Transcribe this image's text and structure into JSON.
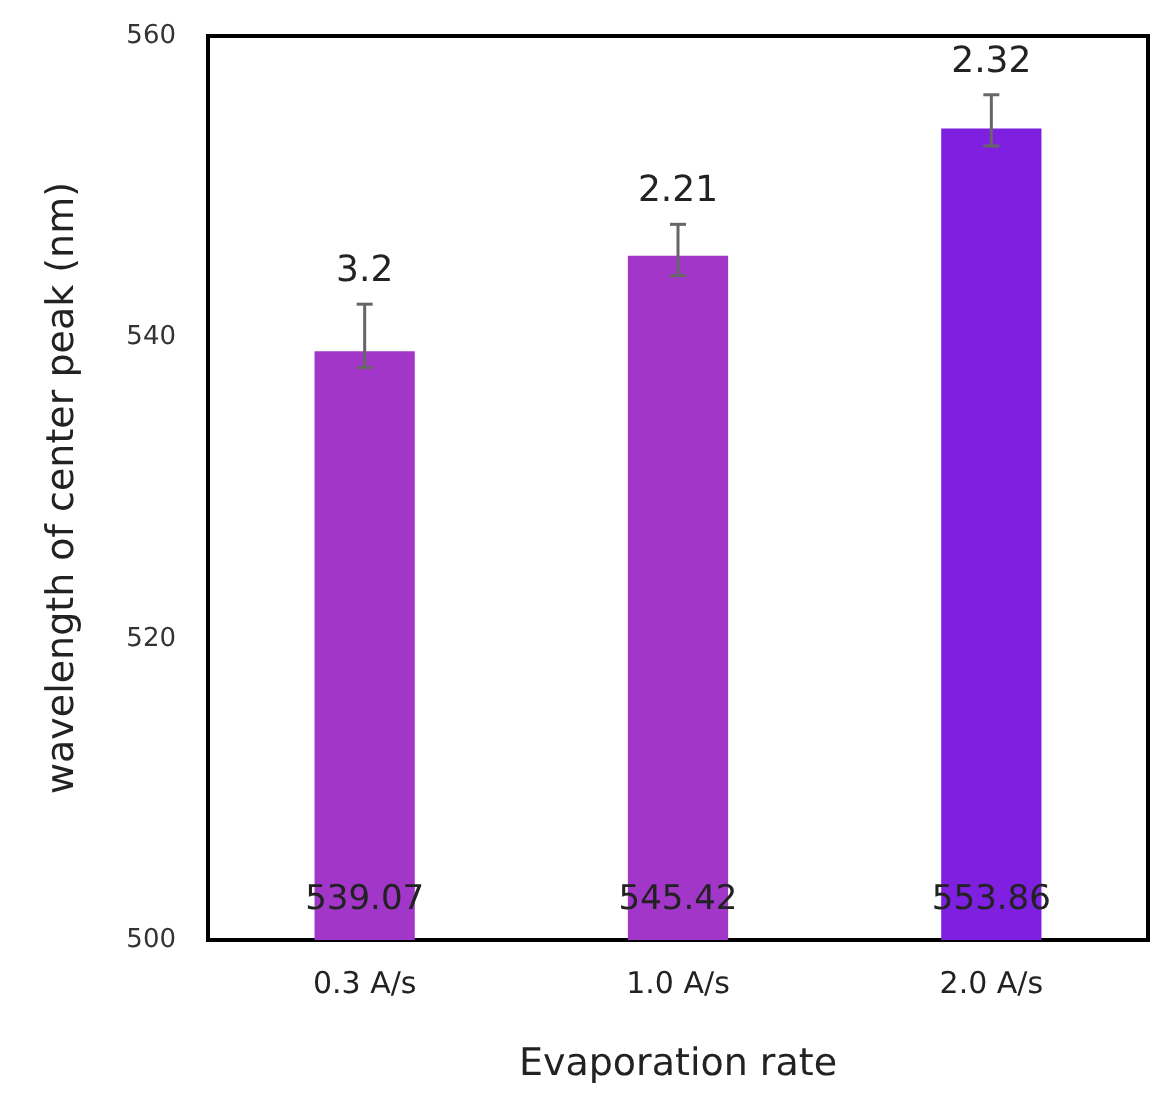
{
  "chart_data": {
    "type": "bar",
    "xlabel": "Evaporation rate",
    "ylabel": "wavelength of center peak (nm)",
    "categories": [
      "0.3 A/s",
      "1.0 A/s",
      "2.0 A/s"
    ],
    "values": [
      539.07,
      545.42,
      553.86
    ],
    "colors": [
      "#a236c9",
      "#a236c9",
      "#7f1fe0"
    ],
    "errors": [
      [
        538.0,
        542.2
      ],
      [
        544.1,
        547.5
      ],
      [
        552.7,
        556.1
      ]
    ],
    "ylim": [
      500,
      560
    ],
    "yticks": [
      500,
      520,
      540,
      560
    ],
    "grid": false,
    "data_labels": true,
    "annotations": [
      {
        "text": "3.2",
        "x": "0.3 A/s",
        "y": 542.2
      },
      {
        "text": "2.21",
        "x": "1.0 A/s",
        "y": 547.5
      },
      {
        "text": "2.32",
        "x": "2.0 A/s",
        "y": 556.1
      }
    ]
  }
}
